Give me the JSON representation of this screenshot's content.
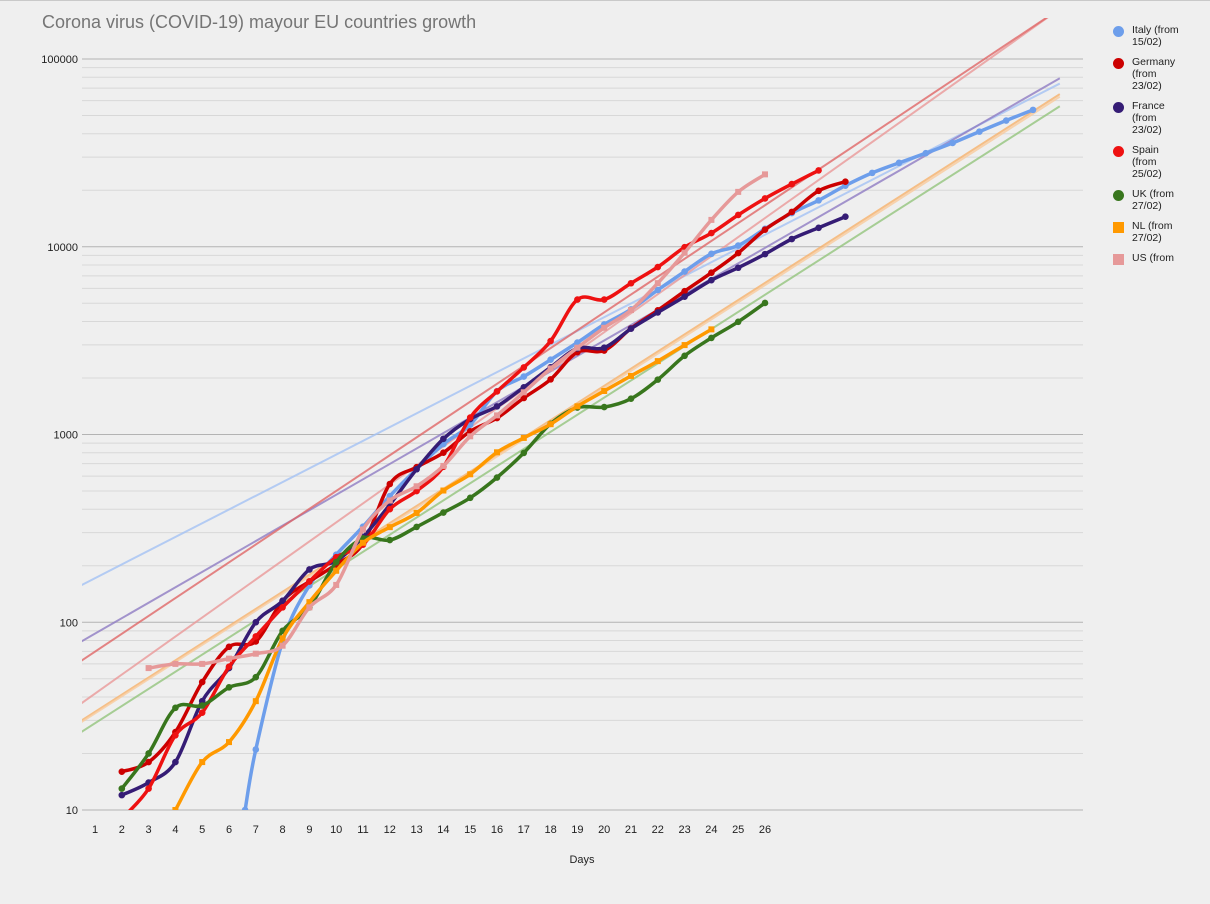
{
  "title": "Corona virus (COVID-19) mayour EU countries growth",
  "chart_data": {
    "type": "line",
    "title": "Corona virus (COVID-19) mayour EU countries growth",
    "xlabel": "Days",
    "ylabel": "",
    "yscale": "log",
    "ylim": [
      10,
      100000
    ],
    "y_ticks": [
      "10",
      "100",
      "1000",
      "10000",
      "100000"
    ],
    "x_ticks": [
      "1",
      "2",
      "3",
      "4",
      "5",
      "6",
      "7",
      "8",
      "9",
      "10",
      "11",
      "12",
      "13",
      "14",
      "15",
      "16",
      "17",
      "18",
      "19",
      "20",
      "21",
      "22",
      "23",
      "24",
      "25",
      "26"
    ],
    "grid": true,
    "legend_position": "right",
    "series": [
      {
        "name": "Italy (from 15/02)",
        "color": "#6d9eeb",
        "marker": "circle",
        "x": [
          6.6,
          7,
          8,
          9,
          10,
          11,
          12,
          13,
          14,
          15,
          16,
          17,
          18,
          19,
          20,
          21,
          22,
          23,
          24,
          25,
          26,
          27,
          28,
          29,
          30,
          31,
          32,
          33,
          34,
          35,
          36
        ],
        "y": [
          10,
          21,
          79,
          157,
          229,
          323,
          470,
          655,
          889,
          1128,
          1701,
          2036,
          2502,
          3089,
          3858,
          4636,
          5883,
          7375,
          9172,
          10149,
          12462,
          15113,
          17660,
          21157,
          24747,
          27980,
          31506,
          35713,
          41035,
          47021,
          53578
        ]
      },
      {
        "name": "Germany (from 23/02)",
        "color": "#cc0000",
        "marker": "circle",
        "x": [
          2,
          3,
          4,
          5,
          6,
          7,
          8,
          9,
          10,
          11,
          12,
          13,
          14,
          15,
          16,
          17,
          18,
          19,
          20,
          21,
          22,
          23,
          24,
          25,
          26,
          27,
          28,
          29
        ],
        "y": [
          16,
          18,
          26,
          48,
          74,
          79,
          130,
          165,
          203,
          262,
          545,
          670,
          800,
          1040,
          1224,
          1565,
          1966,
          2745,
          2800,
          3675,
          4585,
          5795,
          7272,
          9257,
          12327,
          15320,
          19848,
          22213
        ]
      },
      {
        "name": "France (from 23/02)",
        "color": "#351c75",
        "marker": "circle",
        "x": [
          2,
          3,
          4,
          5,
          6,
          7,
          8,
          9,
          10,
          11,
          12,
          13,
          14,
          15,
          16,
          17,
          18,
          19,
          20,
          21,
          22,
          23,
          24,
          25,
          26,
          27,
          28,
          29
        ],
        "y": [
          12,
          14,
          18,
          38,
          57,
          100,
          130,
          191,
          212,
          285,
          423,
          653,
          949,
          1209,
          1412,
          1784,
          2281,
          2876,
          2900,
          3661,
          4469,
          5423,
          6633,
          7730,
          9134,
          10995,
          12612,
          14459
        ]
      },
      {
        "name": "Spain (from 25/02)",
        "color": "#ee1111",
        "marker": "circle",
        "x": [
          2,
          3,
          4,
          5,
          6,
          7,
          8,
          9,
          10,
          11,
          12,
          13,
          14,
          15,
          16,
          17,
          18,
          19,
          20,
          21,
          22,
          23,
          24,
          25,
          26,
          27,
          28
        ],
        "y": [
          9,
          13,
          25,
          33,
          58,
          84,
          120,
          165,
          222,
          259,
          400,
          500,
          673,
          1231,
          1695,
          2277,
          3146,
          5232,
          5232,
          6391,
          7798,
          9942,
          11826,
          14769,
          18077,
          21571,
          25496
        ]
      },
      {
        "name": "UK (from 27/02)",
        "color": "#38761d",
        "marker": "circle",
        "x": [
          2,
          3,
          4,
          5,
          6,
          7,
          8,
          9,
          10,
          11,
          12,
          13,
          14,
          15,
          16,
          17,
          18,
          19,
          20,
          21,
          22,
          23,
          24,
          25,
          26
        ],
        "y": [
          13,
          20,
          35,
          36,
          45,
          51,
          90,
          120,
          209,
          280,
          274,
          322,
          384,
          460,
          590,
          798,
          1140,
          1391,
          1400,
          1551,
          1960,
          2626,
          3269,
          3983,
          5018
        ]
      },
      {
        "name": "NL (from 27/02)",
        "color": "#ff9900",
        "marker": "square",
        "x": [
          3.8,
          4,
          5,
          6,
          7,
          8,
          9,
          10,
          11,
          12,
          13,
          14,
          15,
          16,
          17,
          18,
          19,
          20,
          21,
          22,
          23,
          24
        ],
        "y": [
          9,
          10,
          18,
          23,
          38,
          82,
          128,
          188,
          265,
          321,
          382,
          503,
          614,
          804,
          959,
          1135,
          1413,
          1705,
          2051,
          2460,
          2994,
          3631
        ]
      },
      {
        "name": "US (from",
        "color": "#e69999",
        "marker": "square",
        "x": [
          3,
          4,
          5,
          6,
          7,
          8,
          9,
          10,
          11,
          12,
          13,
          14,
          15,
          16,
          17,
          18,
          19,
          20,
          21,
          22,
          23,
          24,
          25,
          26
        ],
        "y": [
          57,
          60,
          60,
          64,
          68,
          75,
          120,
          158,
          312,
          445,
          530,
          680,
          978,
          1264,
          1678,
          2248,
          2900,
          3700,
          4600,
          6400,
          9300,
          13900,
          19600,
          24300
        ]
      }
    ],
    "trend_lines": [
      {
        "color": "#a4c2f4",
        "x": [
          0,
          37
        ],
        "y": [
          145,
          74000
        ]
      },
      {
        "color": "#8e7cc3",
        "x": [
          0,
          37
        ],
        "y": [
          72,
          79000
        ]
      },
      {
        "color": "#ea9999",
        "x": [
          0,
          37
        ],
        "y": [
          33,
          185000
        ]
      },
      {
        "color": "#e06666",
        "x": [
          0,
          37
        ],
        "y": [
          56,
          185000
        ]
      },
      {
        "color": "#f6b26b",
        "x": [
          0,
          37
        ],
        "y": [
          27,
          65000
        ]
      },
      {
        "color": "#93c47d",
        "x": [
          0,
          37
        ],
        "y": [
          23.5,
          56000
        ]
      },
      {
        "color": "#f9cb9c",
        "x": [
          0,
          37
        ],
        "y": [
          26.5,
          63000
        ]
      }
    ]
  }
}
